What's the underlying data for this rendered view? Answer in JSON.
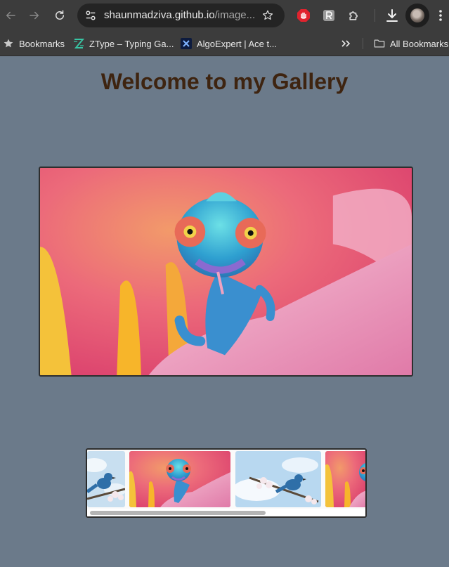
{
  "browser": {
    "url_host": "shaunmadziva.github.io",
    "url_rest": "/image..."
  },
  "bookmarks": [
    {
      "label": "Bookmarks",
      "icon": "star-icon"
    },
    {
      "label": "ZType – Typing Ga...",
      "icon": "ztype-icon"
    },
    {
      "label": "AlgoExpert | Ace t...",
      "icon": "algoexpert-icon"
    }
  ],
  "all_bookmarks_label": "All Bookmarks",
  "page": {
    "title": "Welcome to my Gallery",
    "main_image_subject": "chameleon-on-flower",
    "thumbnails": [
      {
        "subject": "bluebird-on-blossom-branch"
      },
      {
        "subject": "chameleon-on-flower"
      },
      {
        "subject": "bluebird-on-blossom-branch"
      },
      {
        "subject": "chameleon-on-flower"
      }
    ]
  },
  "colors": {
    "page_background": "#6b7a8a",
    "title_color": "#3e2410",
    "chrome_background": "#3c3c3c"
  }
}
